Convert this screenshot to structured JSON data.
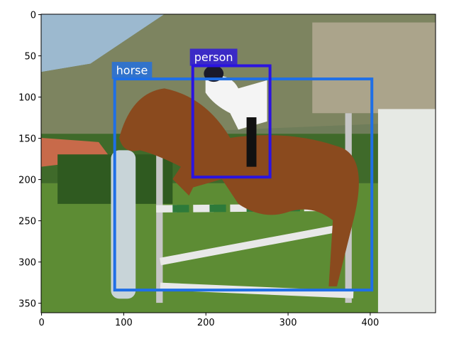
{
  "plot": {
    "xlim": [
      -0.5,
      479.5
    ],
    "ylim": [
      361.5,
      -0.5
    ],
    "xticks": [
      0,
      100,
      200,
      300,
      400
    ],
    "yticks": [
      0,
      50,
      100,
      150,
      200,
      250,
      300,
      350
    ],
    "detections": [
      {
        "label": "horse",
        "color": "#1f6fe6",
        "box": {
          "x1": 89,
          "y1": 78,
          "x2": 402,
          "y2": 334
        }
      },
      {
        "label": "person",
        "color": "#2b14e0",
        "box": {
          "x1": 184,
          "y1": 62,
          "x2": 278,
          "y2": 197
        }
      }
    ]
  }
}
